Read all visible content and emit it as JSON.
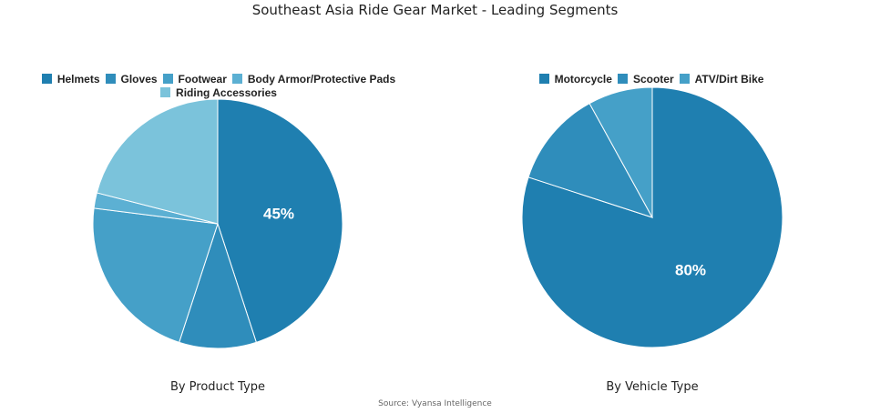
{
  "title": "Southeast Asia Ride Gear Market - Leading Segments",
  "source": "Source: Vyansa Intelligence",
  "charts": [
    {
      "subtitle": "By Product Type",
      "label": "45%",
      "legend": [
        "Helmets",
        "Gloves",
        "Footwear",
        "Body Armor/Protective Pads",
        "Riding Accessories"
      ]
    },
    {
      "subtitle": "By Vehicle Type",
      "label": "80%",
      "legend": [
        "Motorcycle",
        "Scooter",
        "ATV/Dirt Bike"
      ]
    }
  ],
  "chart_data": [
    {
      "type": "pie",
      "title": "By Product Type",
      "categories": [
        "Helmets",
        "Gloves",
        "Footwear",
        "Body Armor/Protective Pads",
        "Riding Accessories"
      ],
      "values": [
        45,
        10,
        22,
        2,
        21
      ],
      "colors": [
        "#1f7fb0",
        "#2f8dbb",
        "#45a0c8",
        "#5cb0d3",
        "#7bc3db"
      ],
      "data_labels": [
        "45%"
      ],
      "legend_position": "top"
    },
    {
      "type": "pie",
      "title": "By Vehicle Type",
      "categories": [
        "Motorcycle",
        "Scooter",
        "ATV/Dirt Bike"
      ],
      "values": [
        80,
        12,
        8
      ],
      "colors": [
        "#1f7fb0",
        "#2f8dbb",
        "#45a0c8"
      ],
      "data_labels": [
        "80%"
      ],
      "legend_position": "top"
    }
  ]
}
